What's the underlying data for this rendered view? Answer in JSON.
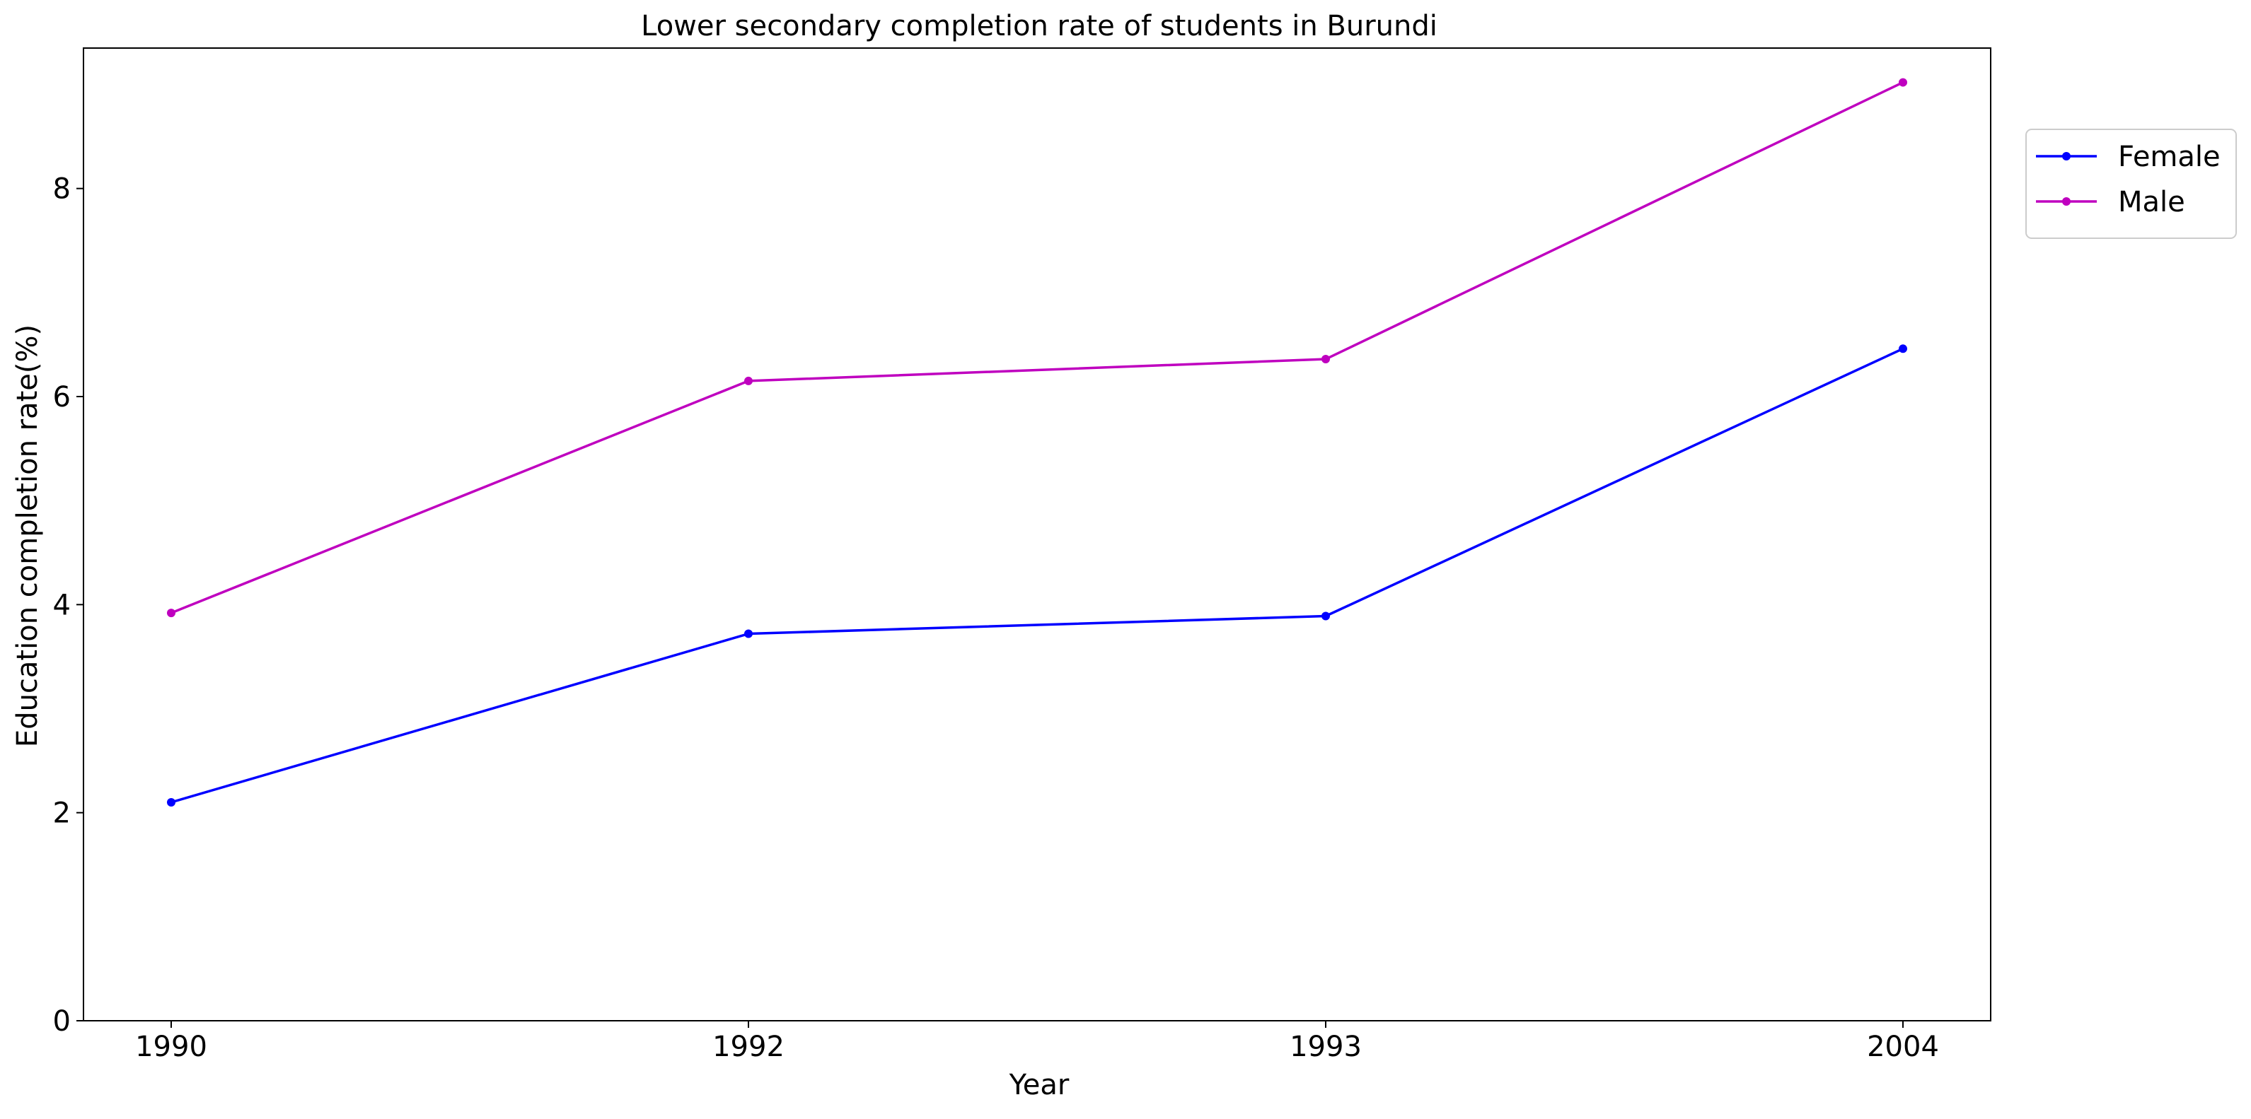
{
  "chart_data": {
    "type": "line",
    "title": "Lower secondary completion rate of students in Burundi",
    "xlabel": "Year",
    "ylabel": "Education completion rate(%)",
    "categories": [
      "1990",
      "1992",
      "1993",
      "2004"
    ],
    "ylim": [
      0,
      9.35
    ],
    "yticks": [
      0,
      2,
      4,
      6,
      8
    ],
    "grid": false,
    "legend_position": "top-right outside",
    "series": [
      {
        "name": "Female",
        "color": "#0000ff",
        "values": [
          2.1,
          3.72,
          3.89,
          6.46
        ]
      },
      {
        "name": "Male",
        "color": "#bf00bf",
        "values": [
          3.92,
          6.15,
          6.36,
          9.02
        ]
      }
    ]
  }
}
